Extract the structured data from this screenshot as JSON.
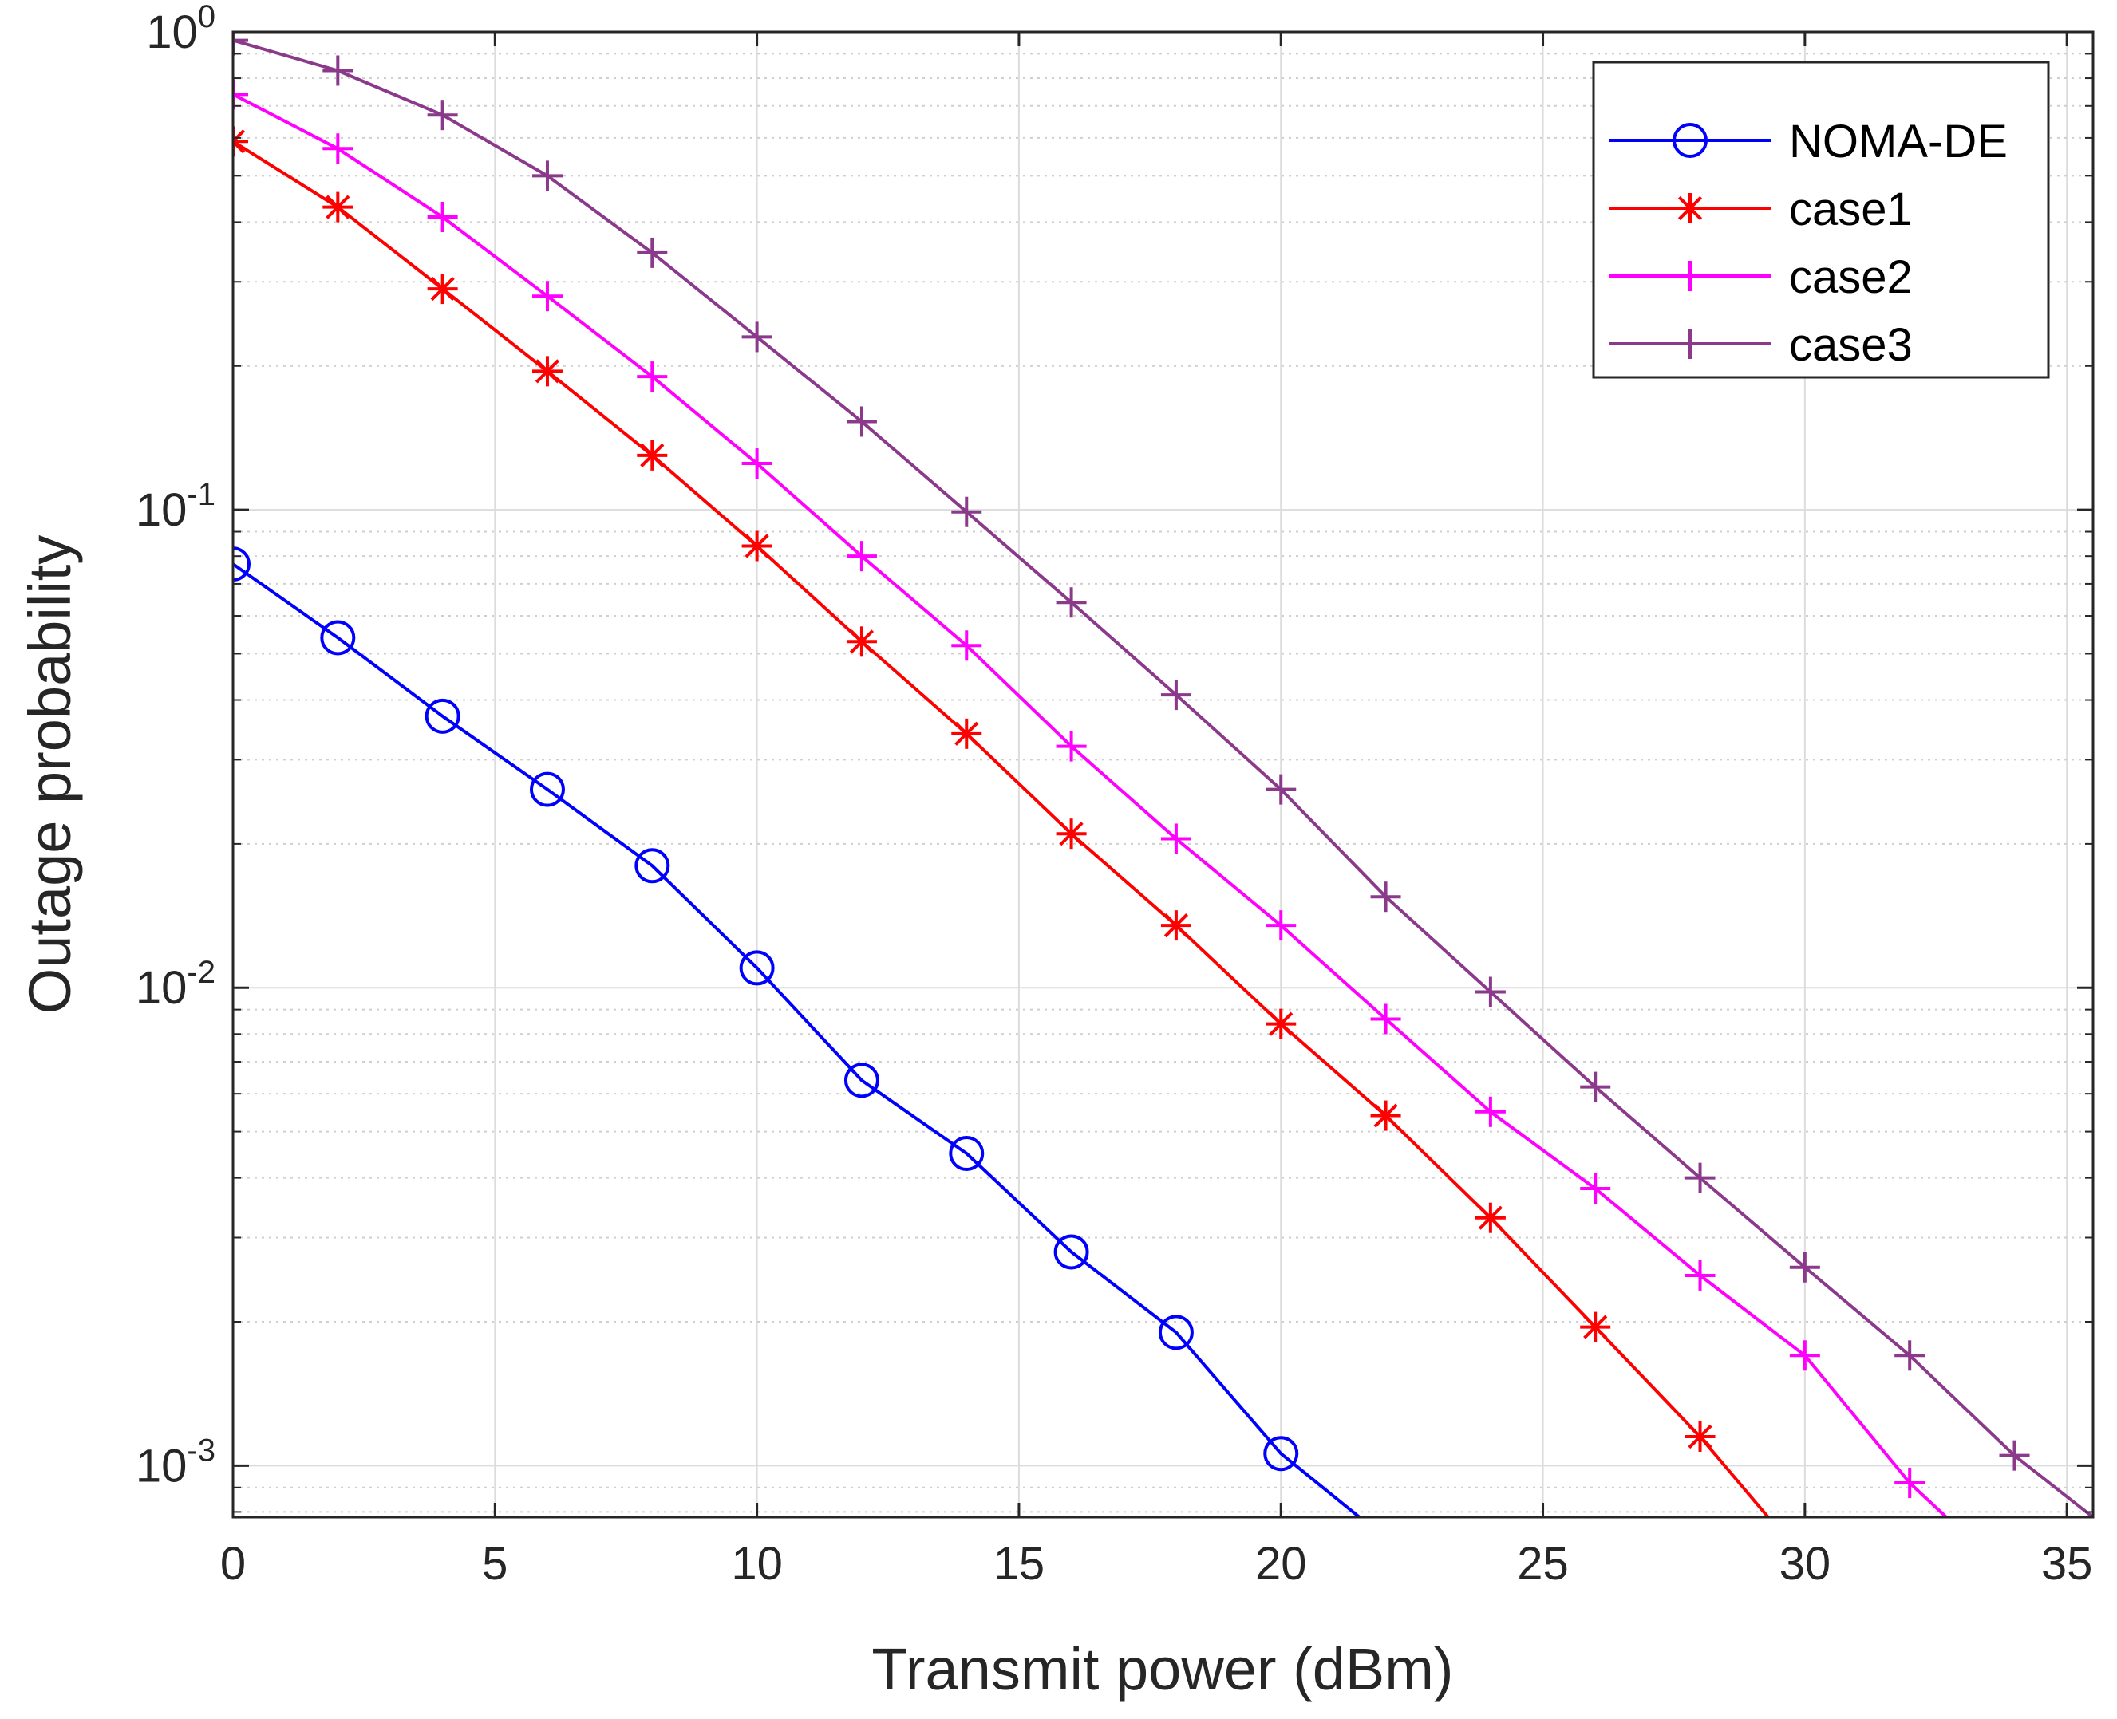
{
  "chart_data": {
    "type": "line",
    "title": "",
    "xlabel": "Transmit power (dBm)",
    "ylabel": "Outage probability",
    "x_scale": "linear",
    "y_scale": "log",
    "xlim": [
      0,
      35.5
    ],
    "ylim": [
      0.00078,
      1.0
    ],
    "grid": true,
    "legend_position": "top-right",
    "x_ticks": [
      {
        "value": 0,
        "label": "0"
      },
      {
        "value": 5,
        "label": "5"
      },
      {
        "value": 10,
        "label": "10"
      },
      {
        "value": 15,
        "label": "15"
      },
      {
        "value": 20,
        "label": "20"
      },
      {
        "value": 25,
        "label": "25"
      },
      {
        "value": 30,
        "label": "30"
      },
      {
        "value": 35,
        "label": "35"
      }
    ],
    "y_ticks": [
      {
        "value": 1,
        "base": "10",
        "exp": "0"
      },
      {
        "value": 0.1,
        "base": "10",
        "exp": "-1"
      },
      {
        "value": 0.01,
        "base": "10",
        "exp": "-2"
      },
      {
        "value": 0.001,
        "base": "10",
        "exp": "-3"
      }
    ],
    "series": [
      {
        "name": "NOMA-DE",
        "color": "#0000ff",
        "marker": "circle",
        "x": [
          0,
          2,
          4,
          6,
          8,
          10,
          12,
          14,
          16,
          18,
          20,
          21.5
        ],
        "y": [
          0.077,
          0.054,
          0.037,
          0.026,
          0.018,
          0.011,
          0.0064,
          0.0045,
          0.0028,
          0.0019,
          0.00106,
          0.00078
        ],
        "marker_count": 11
      },
      {
        "name": "case1",
        "color": "#ff0000",
        "marker": "star",
        "x": [
          0,
          2,
          4,
          6,
          8,
          10,
          12,
          14,
          16,
          18,
          20,
          22,
          24,
          26,
          28,
          29.3
        ],
        "y": [
          0.59,
          0.43,
          0.29,
          0.195,
          0.13,
          0.084,
          0.053,
          0.034,
          0.021,
          0.0135,
          0.0084,
          0.0054,
          0.0033,
          0.00195,
          0.00115,
          0.00078
        ],
        "marker_count": 15
      },
      {
        "name": "case2",
        "color": "#ff00ff",
        "marker": "plus",
        "x": [
          0,
          2,
          4,
          6,
          8,
          10,
          12,
          14,
          16,
          18,
          20,
          22,
          24,
          26,
          28,
          30,
          32,
          32.7
        ],
        "y": [
          0.74,
          0.57,
          0.41,
          0.28,
          0.19,
          0.125,
          0.08,
          0.052,
          0.032,
          0.0205,
          0.0135,
          0.0086,
          0.0055,
          0.0038,
          0.0025,
          0.0017,
          0.00092,
          0.00078
        ],
        "marker_count": 17
      },
      {
        "name": "case3",
        "color": "#8b3a8b",
        "marker": "plus",
        "x": [
          0,
          2,
          4,
          6,
          8,
          10,
          12,
          14,
          16,
          18,
          20,
          22,
          24,
          26,
          28,
          30,
          32,
          34,
          35.5
        ],
        "y": [
          0.96,
          0.83,
          0.67,
          0.5,
          0.345,
          0.23,
          0.153,
          0.099,
          0.064,
          0.041,
          0.026,
          0.0155,
          0.0098,
          0.0062,
          0.004,
          0.0026,
          0.0017,
          0.00105,
          0.00078
        ],
        "marker_count": 18
      }
    ]
  }
}
